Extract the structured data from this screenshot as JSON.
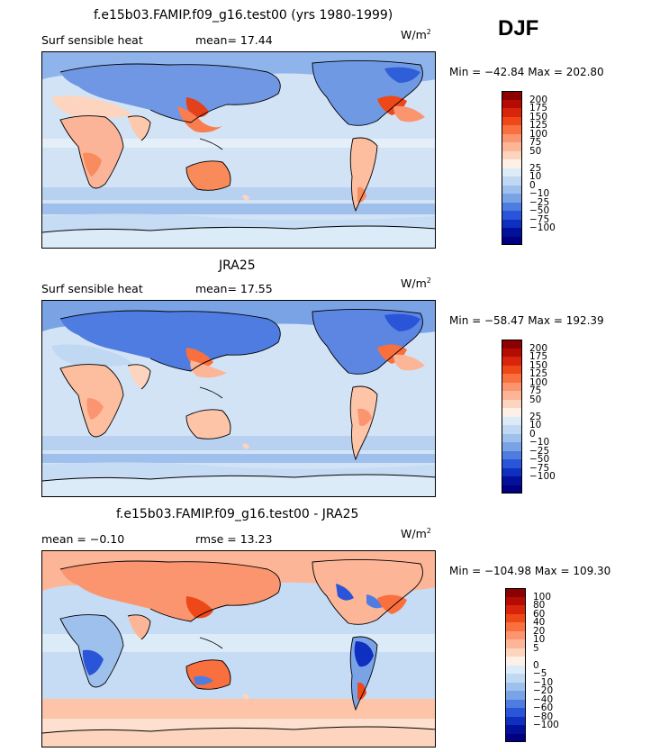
{
  "header": {
    "title": "f.e15b03.FAMIP.f09_g16.test00 (yrs 1980-1999)",
    "season": "DJF"
  },
  "panels": [
    {
      "id": "model",
      "title": "",
      "left_label": "Surf sensible heat",
      "center_label": "mean=  17.44",
      "units_base": "W/m",
      "units_exp": "2",
      "minmax": "Min = −42.84 Max = 202.80"
    },
    {
      "id": "obs",
      "title": "JRA25",
      "left_label": "Surf sensible heat",
      "center_label": "mean=  17.55",
      "units_base": "W/m",
      "units_exp": "2",
      "minmax": "Min = −58.47 Max = 192.39"
    },
    {
      "id": "diff",
      "title": "f.e15b03.FAMIP.f09_g16.test00 - JRA25",
      "left_label": "mean =  −0.10",
      "center_label": "rmse =  13.23",
      "units_base": "W/m",
      "units_exp": "2",
      "minmax": "Min = −104.98 Max = 109.30"
    }
  ],
  "colorbar_field": {
    "labels": [
      "200",
      "175",
      "150",
      "125",
      "100",
      "75",
      "50",
      "25",
      "10",
      "0",
      "−10",
      "−25",
      "−50",
      "−75",
      "−100"
    ],
    "colors": [
      "#8b0000",
      "#b40c05",
      "#d8240a",
      "#ef4818",
      "#f96f3e",
      "#fb9570",
      "#fdb597",
      "#fdd5be",
      "#fef0e6",
      "#dcebf8",
      "#c0d8f2",
      "#9ec0ec",
      "#7aa3e6",
      "#4f7ce0",
      "#2a55d8",
      "#0f2fc0",
      "#03109a",
      "#000080"
    ]
  },
  "colorbar_diff": {
    "labels": [
      "100",
      "80",
      "60",
      "40",
      "20",
      "10",
      "5",
      "0",
      "−5",
      "−10",
      "−20",
      "−40",
      "−60",
      "−80",
      "−100"
    ],
    "colors": [
      "#8b0000",
      "#b40c05",
      "#d8240a",
      "#ef4818",
      "#f96f3e",
      "#fb9570",
      "#fdb597",
      "#fdd5be",
      "#fef0e6",
      "#dcebf8",
      "#c0d8f2",
      "#9ec0ec",
      "#7aa3e6",
      "#4f7ce0",
      "#2a55d8",
      "#0f2fc0",
      "#03109a",
      "#000080"
    ]
  },
  "maps": {
    "ocean_base": "#cfe2f6",
    "land_model": "#fdd5be",
    "land_obs": "#fdc9ad",
    "diff_base": "#dcebf8"
  }
}
